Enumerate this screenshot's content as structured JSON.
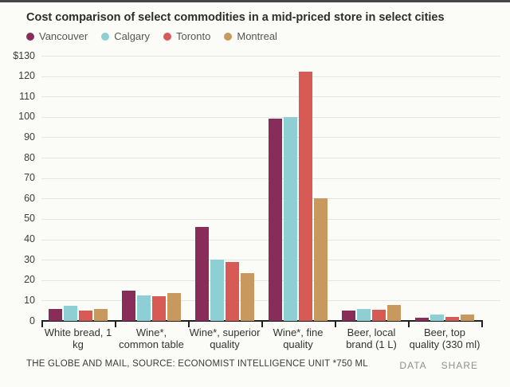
{
  "page": {
    "title": "Cost comparison of select commodities in a mid-priced store in select cities",
    "footer_source": "THE GLOBE AND MAIL, SOURCE: ECONOMIST INTELLIGENCE UNIT *750 ML",
    "actions": {
      "data_label": "DATA",
      "share_label": "SHARE"
    }
  },
  "colors": {
    "background": "#fbfbf8",
    "gridline": "#e5e5e1",
    "axis": "#1f1f1f",
    "vancouver": "#882d5a",
    "calgary": "#8ecfd4",
    "toronto": "#d85a55",
    "montreal": "#c8995f"
  },
  "chart_data": {
    "type": "bar",
    "title": "Cost comparison of select commodities in a mid-priced store in select cities",
    "categories": [
      "White bread, 1 kg",
      "Wine*, common table",
      "Wine*, superior quality",
      "Wine*, fine quality",
      "Beer, local brand (1 L)",
      "Beer, top quality (330 ml)"
    ],
    "series": [
      {
        "name": "Vancouver",
        "color": "#882d5a",
        "values": [
          6,
          15,
          46,
          99,
          5,
          1.5
        ]
      },
      {
        "name": "Calgary",
        "color": "#8ecfd4",
        "values": [
          7.5,
          12.5,
          30,
          100,
          6,
          3
        ]
      },
      {
        "name": "Toronto",
        "color": "#d85a55",
        "values": [
          5,
          12,
          29,
          122,
          5.5,
          2
        ]
      },
      {
        "name": "Montreal",
        "color": "#c8995f",
        "values": [
          6,
          13.5,
          23.5,
          60,
          8,
          3
        ]
      }
    ],
    "xlabel": "",
    "ylabel": "",
    "y_axis": {
      "min": 0,
      "max": 130,
      "step": 10,
      "top_tick_label": "$130",
      "unit": "CAD $"
    },
    "grid": true,
    "legend_position": "top-left"
  }
}
